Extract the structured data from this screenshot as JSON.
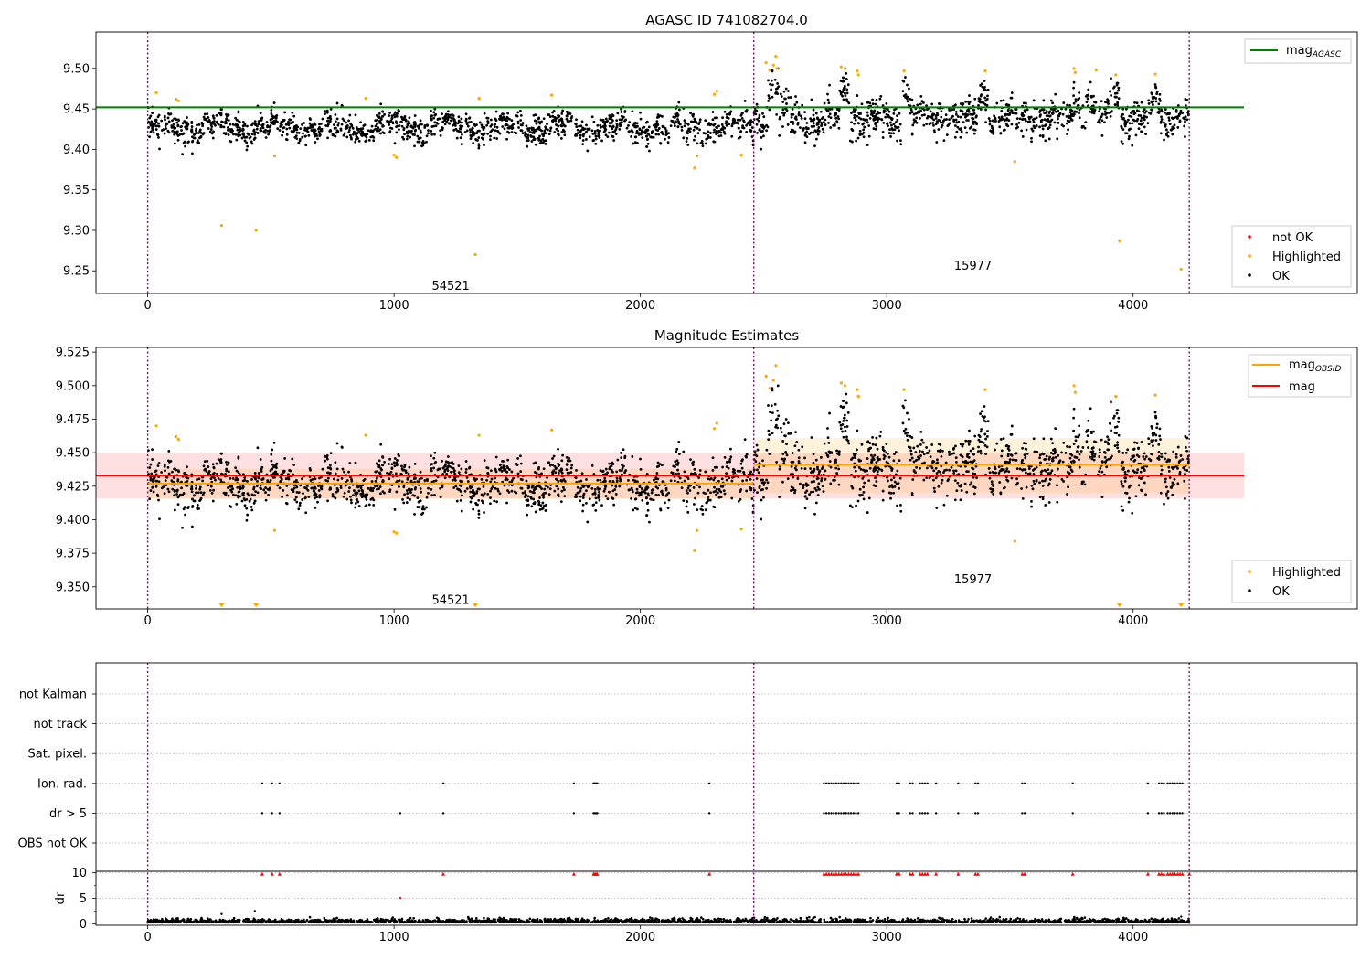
{
  "colors": {
    "ok": "#000000",
    "not_ok": "#ff0000",
    "highlighted": "#ffa500",
    "agasc_line": "#008000",
    "mag_line": "#ff0000",
    "mag_obsid": "#ffa500",
    "obs_boundary": "#800080",
    "grid": "#b0b0b0"
  },
  "chart_data": [
    {
      "type": "scatter",
      "title": "AGASC ID 741082704.0",
      "xlim": [
        -210,
        4910
      ],
      "ylim": [
        9.222,
        9.545
      ],
      "xticks": [
        "0",
        "1000",
        "2000",
        "3000",
        "4000"
      ],
      "yticks": [
        "9.25",
        "9.30",
        "9.35",
        "9.40",
        "9.45",
        "9.50"
      ],
      "mag_agasc": 9.452,
      "mag_agasc_x_range": [
        -210,
        4450
      ],
      "obs_boundaries": [
        0,
        2460,
        4228
      ],
      "obs_labels": [
        {
          "text": "54521",
          "x": 1230,
          "y": 9.232
        },
        {
          "text": "15977",
          "x": 3350,
          "y": 9.257
        }
      ],
      "legend_line": [
        {
          "label": "mag",
          "sub": "AGASC"
        }
      ],
      "legend_points": [
        {
          "label": "not OK",
          "color": "#ff0000"
        },
        {
          "label": "Highlighted",
          "color": "#ffa500"
        },
        {
          "label": "OK",
          "color": "#000000"
        }
      ],
      "highlighted_points": [
        [
          35,
          9.47
        ],
        [
          115,
          9.462
        ],
        [
          125,
          9.46
        ],
        [
          300,
          9.306
        ],
        [
          440,
          9.3
        ],
        [
          515,
          9.392
        ],
        [
          885,
          9.463
        ],
        [
          1000,
          9.393
        ],
        [
          1010,
          9.39
        ],
        [
          1330,
          9.27
        ],
        [
          1345,
          9.463
        ],
        [
          1640,
          9.467
        ],
        [
          2220,
          9.377
        ],
        [
          2230,
          9.392
        ],
        [
          2300,
          9.468
        ],
        [
          2310,
          9.472
        ],
        [
          2410,
          9.393
        ],
        [
          2510,
          9.507
        ],
        [
          2525,
          9.498
        ],
        [
          2540,
          9.504
        ],
        [
          2550,
          9.515
        ],
        [
          2555,
          9.5
        ],
        [
          2815,
          9.502
        ],
        [
          2830,
          9.5
        ],
        [
          2880,
          9.497
        ],
        [
          2885,
          9.492
        ],
        [
          3070,
          9.497
        ],
        [
          3400,
          9.497
        ],
        [
          3520,
          9.385
        ],
        [
          3760,
          9.5
        ],
        [
          3765,
          9.495
        ],
        [
          3850,
          9.498
        ],
        [
          3930,
          9.492
        ],
        [
          3945,
          9.287
        ],
        [
          4090,
          9.493
        ],
        [
          4195,
          9.252
        ]
      ]
    },
    {
      "type": "scatter",
      "title": "Magnitude Estimates",
      "xlim": [
        -210,
        4910
      ],
      "ylim": [
        9.3335,
        9.5285
      ],
      "xticks": [
        "0",
        "1000",
        "2000",
        "3000",
        "4000"
      ],
      "yticks": [
        "9.350",
        "9.375",
        "9.400",
        "9.425",
        "9.450",
        "9.475",
        "9.500",
        "9.525"
      ],
      "mag": 9.433,
      "mag_band": [
        9.416,
        9.45
      ],
      "mag_x_range": [
        -210,
        4450
      ],
      "mag_obsid": [
        {
          "x": [
            0,
            2460
          ],
          "value": 9.427,
          "band": [
            9.416,
            9.438
          ]
        },
        {
          "x": [
            2460,
            4228
          ],
          "value": 9.441,
          "band": [
            9.42,
            9.461
          ]
        }
      ],
      "obs_boundaries": [
        0,
        2460,
        4228
      ],
      "obs_labels": [
        {
          "text": "54521",
          "x": 1230,
          "y": 9.3405
        },
        {
          "text": "15977",
          "x": 3350,
          "y": 9.356
        }
      ],
      "legend_line": [
        {
          "label": "mag",
          "sub": "OBSID",
          "color": "#ffa500"
        },
        {
          "label": "mag",
          "sub": "",
          "color": "#ff0000"
        }
      ],
      "legend_points": [
        {
          "label": "Highlighted",
          "color": "#ffa500"
        },
        {
          "label": "OK",
          "color": "#000000"
        }
      ],
      "highlighted_points": [
        [
          35,
          9.47
        ],
        [
          115,
          9.462
        ],
        [
          125,
          9.46
        ],
        [
          515,
          9.392
        ],
        [
          885,
          9.463
        ],
        [
          1000,
          9.391
        ],
        [
          1010,
          9.39
        ],
        [
          1345,
          9.463
        ],
        [
          1640,
          9.467
        ],
        [
          2220,
          9.377
        ],
        [
          2230,
          9.392
        ],
        [
          2300,
          9.468
        ],
        [
          2310,
          9.472
        ],
        [
          2410,
          9.393
        ],
        [
          2510,
          9.507
        ],
        [
          2525,
          9.498
        ],
        [
          2540,
          9.504
        ],
        [
          2550,
          9.515
        ],
        [
          2815,
          9.502
        ],
        [
          2830,
          9.5
        ],
        [
          2880,
          9.497
        ],
        [
          2885,
          9.492
        ],
        [
          3070,
          9.497
        ],
        [
          3400,
          9.497
        ],
        [
          3520,
          9.384
        ],
        [
          3760,
          9.5
        ],
        [
          3765,
          9.495
        ],
        [
          3930,
          9.492
        ],
        [
          4090,
          9.493
        ]
      ],
      "below_range_markers": [
        300,
        440,
        1330,
        3945,
        4195
      ]
    },
    {
      "type": "scatter",
      "title": "",
      "xlim": [
        -210,
        4910
      ],
      "xticks": [
        "0",
        "1000",
        "2000",
        "3000",
        "4000"
      ],
      "flag_labels": [
        "not Kalman",
        "not track",
        "Sat. pixel.",
        "Ion. rad.",
        "dr > 5",
        "OBS not OK"
      ],
      "flagged_x": {
        "Ion. rad.": [
          465,
          505,
          535,
          1200,
          1730,
          1810,
          1815,
          1820,
          1825,
          2280,
          2745,
          2755,
          2765,
          2775,
          2785,
          2795,
          2805,
          2815,
          2825,
          2835,
          2845,
          2855,
          2865,
          2875,
          2885,
          3040,
          3050,
          3095,
          3105,
          3135,
          3145,
          3155,
          3165,
          3200,
          3290,
          3360,
          3370,
          3550,
          3560,
          3755,
          4060,
          4105,
          4115,
          4125,
          4140,
          4150,
          4160,
          4170,
          4180,
          4190,
          4200
        ],
        "dr > 5": [
          465,
          505,
          535,
          1025,
          1200,
          1730,
          1810,
          1815,
          1820,
          1825,
          2280,
          2745,
          2755,
          2765,
          2775,
          2785,
          2795,
          2805,
          2815,
          2825,
          2835,
          2845,
          2855,
          2865,
          2875,
          2885,
          3040,
          3050,
          3095,
          3105,
          3135,
          3145,
          3155,
          3165,
          3200,
          3290,
          3360,
          3370,
          3550,
          3560,
          3755,
          4060,
          4105,
          4115,
          4125,
          4140,
          4150,
          4160,
          4170,
          4180,
          4190,
          4200
        ]
      },
      "dr_ylabel": "dr",
      "dr_yticks": [
        "0",
        "5",
        "10"
      ],
      "dr_ylim": [
        -0.3,
        10.3
      ],
      "dr_clipped_x": [
        465,
        505,
        535,
        1200,
        1730,
        1810,
        1815,
        1820,
        1825,
        2280,
        2745,
        2755,
        2765,
        2775,
        2785,
        2795,
        2805,
        2815,
        2825,
        2835,
        2845,
        2855,
        2865,
        2875,
        2885,
        3040,
        3050,
        3095,
        3105,
        3135,
        3145,
        3155,
        3165,
        3200,
        3290,
        3360,
        3370,
        3550,
        3560,
        3755,
        4060,
        4105,
        4115,
        4125,
        4140,
        4150,
        4160,
        4170,
        4180,
        4190,
        4200,
        4228
      ],
      "dr_extra_points": [
        [
          1025,
          5.1
        ],
        [
          300,
          1.9
        ],
        [
          435,
          2.5
        ],
        [
          4195,
          1.4
        ]
      ],
      "obs_boundaries": [
        0,
        2460,
        4228
      ]
    }
  ]
}
